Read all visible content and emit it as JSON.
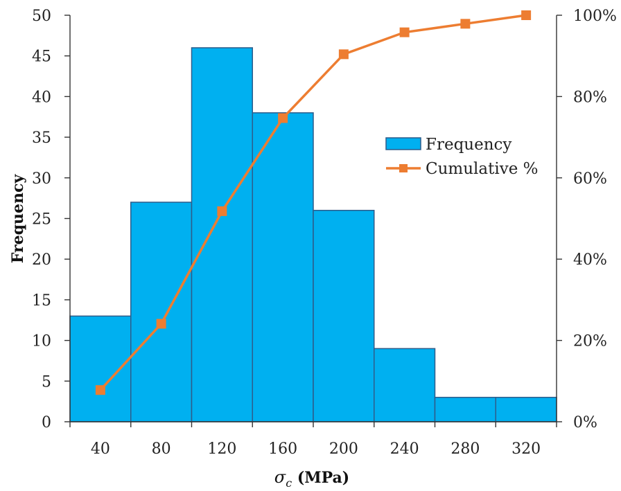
{
  "chart_data": {
    "type": "bar",
    "categories": [
      "40",
      "80",
      "120",
      "160",
      "200",
      "240",
      "280",
      "320"
    ],
    "series": [
      {
        "name": "Frequency",
        "type": "bar",
        "axis": "left",
        "color": "#00B0F0",
        "values": [
          13,
          27,
          46,
          38,
          26,
          9,
          3,
          3
        ]
      },
      {
        "name": "Cumulative %",
        "type": "line",
        "axis": "right",
        "color": "#ED7D31",
        "values": [
          7.8,
          24.1,
          51.8,
          74.7,
          90.4,
          95.8,
          97.9,
          100.0
        ]
      }
    ],
    "xlabel_symbol": "σ",
    "xlabel_subscript": "c",
    "xlabel_unit": " (MPa)",
    "ylabel": "Frequency",
    "ylim": [
      0,
      50
    ],
    "y_ticks": [
      "0",
      "5",
      "10",
      "15",
      "20",
      "25",
      "30",
      "35",
      "40",
      "45",
      "50"
    ],
    "y2lim": [
      0,
      100
    ],
    "y2_ticks": [
      "0%",
      "20%",
      "40%",
      "60%",
      "80%",
      "100%"
    ],
    "legend_position": "center-right",
    "grid": false
  }
}
